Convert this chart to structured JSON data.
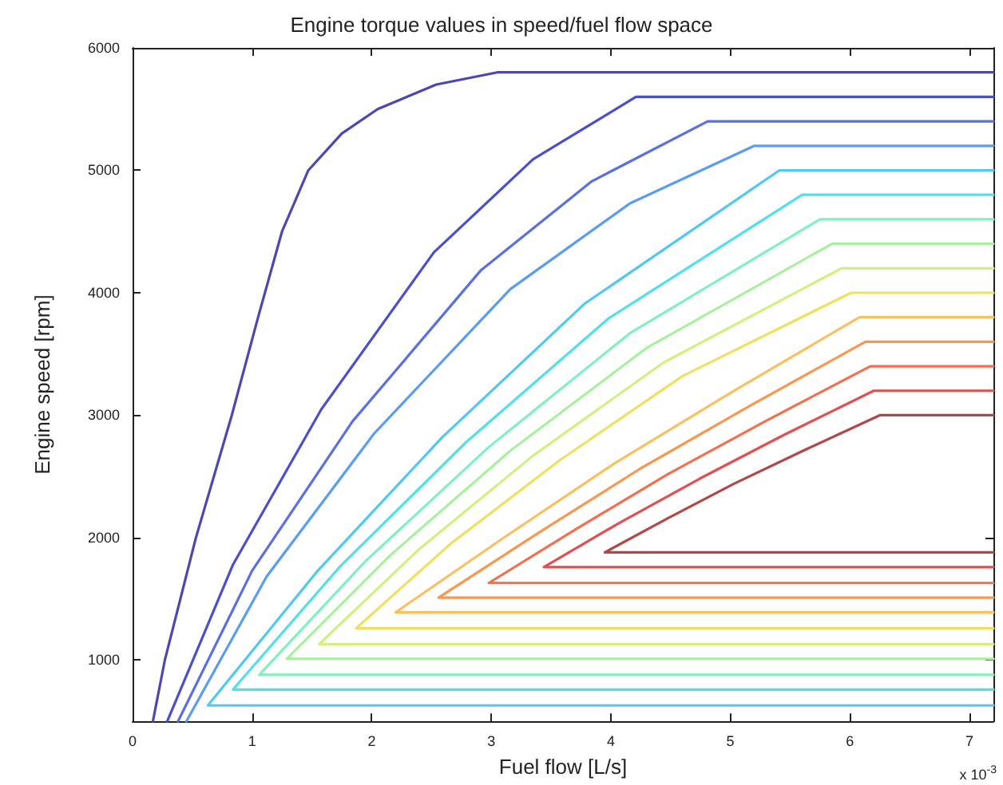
{
  "chart_data": {
    "type": "line",
    "title": "Engine torque values in speed/fuel flow space",
    "xlabel": "Fuel flow [L/s]",
    "ylabel": "Engine speed [rpm]",
    "annotations": [
      "x 10$^{-3}$"
    ],
    "xlim": [
      0,
      7.2
    ],
    "xticks": [
      0,
      1,
      2,
      3,
      4,
      5,
      6,
      7
    ],
    "ylim": [
      500,
      6000
    ],
    "yticks": [
      1000,
      2000,
      3000,
      4000,
      5000,
      6000
    ],
    "grid": false,
    "marker": "none",
    "line_style": "solid",
    "series": [
      {
        "color": "#4b48b0",
        "x": [
          0.17,
          0.27,
          0.53,
          0.83,
          1.05,
          1.25,
          1.47,
          1.75,
          2.05,
          2.54,
          3.05,
          7.2
        ],
        "values": [
          500,
          1000,
          2000,
          3000,
          3800,
          4500,
          5000,
          5300,
          5500,
          5700,
          5800,
          5800
        ]
      },
      {
        "color": "#4a50cc",
        "x": [
          0.29,
          0.84,
          1.58,
          2.52,
          3.35,
          4.21,
          7.2
        ],
        "values": [
          500,
          1780,
          3050,
          4330,
          5090,
          5600,
          5600
        ]
      },
      {
        "color": "#5a70e0",
        "x": [
          0.38,
          1.0,
          1.84,
          2.91,
          3.84,
          4.81,
          7.2
        ],
        "values": [
          500,
          1730,
          2950,
          4180,
          4910,
          5400,
          5400
        ]
      },
      {
        "color": "#5a9cf0",
        "x": [
          0.45,
          1.12,
          2.02,
          3.16,
          4.16,
          5.2,
          7.2
        ],
        "values": [
          500,
          1680,
          2850,
          4030,
          4730,
          5200,
          5200
        ]
      },
      {
        "color": "#50c8f0",
        "x": [
          7.2,
          0.63,
          1.54,
          2.59,
          3.78,
          5.41,
          7.2
        ],
        "values": [
          630,
          630,
          1720,
          2820,
          3910,
          5000,
          5000
        ]
      },
      {
        "color": "#50e0e8",
        "x": [
          7.2,
          0.84,
          1.74,
          2.79,
          3.98,
          5.6,
          7.2
        ],
        "values": [
          760,
          760,
          1770,
          2780,
          3790,
          4800,
          4800
        ]
      },
      {
        "color": "#80f0c0",
        "x": [
          7.2,
          1.06,
          1.95,
          2.98,
          4.16,
          5.75,
          7.2
        ],
        "values": [
          880,
          880,
          1810,
          2740,
          3670,
          4600,
          4600
        ]
      },
      {
        "color": "#a8f0a0",
        "x": [
          7.2,
          1.29,
          2.16,
          3.16,
          4.3,
          5.85,
          7.2
        ],
        "values": [
          1010,
          1010,
          1860,
          2710,
          3550,
          4400,
          4400
        ]
      },
      {
        "color": "#d0f080",
        "x": [
          7.2,
          1.56,
          2.39,
          3.35,
          4.44,
          5.93,
          7.2
        ],
        "values": [
          1130,
          1130,
          1900,
          2670,
          3430,
          4200,
          4200
        ]
      },
      {
        "color": "#f0e060",
        "x": [
          7.2,
          1.87,
          2.66,
          3.57,
          4.6,
          6.01,
          7.2
        ],
        "values": [
          1260,
          1260,
          1950,
          2630,
          3320,
          4000,
          4000
        ]
      },
      {
        "color": "#f8c060",
        "x": [
          7.2,
          2.2,
          3.09,
          4.02,
          5.03,
          6.08,
          7.2
        ],
        "values": [
          1390,
          1390,
          1990,
          2600,
          3200,
          3800,
          3800
        ]
      },
      {
        "color": "#f89850",
        "x": [
          7.2,
          2.56,
          3.38,
          4.24,
          5.17,
          6.13,
          7.2
        ],
        "values": [
          1510,
          1510,
          2030,
          2560,
          3080,
          3600,
          3600
        ]
      },
      {
        "color": "#f07050",
        "x": [
          7.2,
          2.98,
          3.71,
          4.48,
          5.31,
          6.17,
          7.2
        ],
        "values": [
          1630,
          1630,
          2070,
          2520,
          2960,
          3400,
          3400
        ]
      },
      {
        "color": "#e05050",
        "x": [
          7.2,
          3.44,
          4.07,
          4.74,
          5.45,
          6.2,
          7.2
        ],
        "values": [
          1760,
          1760,
          2120,
          2480,
          2840,
          3200,
          3200
        ]
      },
      {
        "color": "#b04848",
        "x": [
          7.2,
          3.95,
          4.48,
          5.03,
          5.63,
          6.25,
          7.2
        ],
        "values": [
          1880,
          1880,
          2160,
          2440,
          2720,
          3000,
          3000
        ]
      }
    ]
  }
}
